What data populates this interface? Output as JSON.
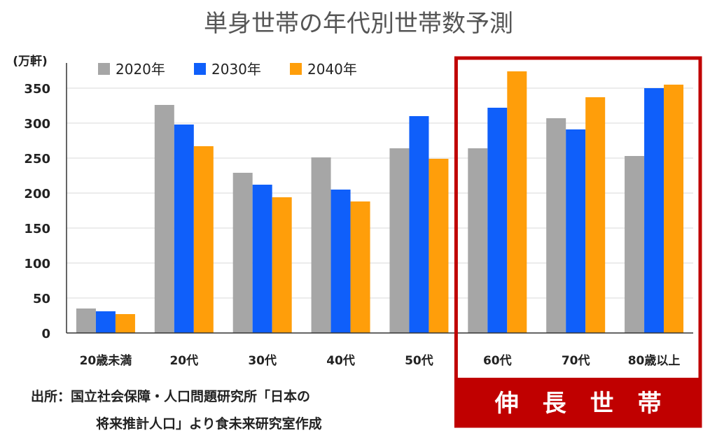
{
  "chart_data": {
    "type": "bar",
    "title": "単身世帯の年代別世帯数予測",
    "ylabel": "(万軒)",
    "xlabel": "",
    "ylim": [
      0,
      380
    ],
    "yticks": [
      0,
      50,
      100,
      150,
      200,
      250,
      300,
      350
    ],
    "grid": true,
    "legend_position": "top-left",
    "categories": [
      "20歳未満",
      "20代",
      "30代",
      "40代",
      "50代",
      "60代",
      "70代",
      "80歳以上"
    ],
    "series": [
      {
        "name": "2020年",
        "color": "#a6a6a6",
        "values": [
          35,
          326,
          229,
          251,
          264,
          264,
          307,
          253
        ]
      },
      {
        "name": "2030年",
        "color": "#0f5ffa",
        "values": [
          31,
          298,
          212,
          205,
          310,
          322,
          291,
          350
        ]
      },
      {
        "name": "2040年",
        "color": "#ff9e0a",
        "values": [
          27,
          267,
          194,
          188,
          249,
          374,
          337,
          355
        ]
      }
    ],
    "highlight": {
      "label": "伸　長　世　帯",
      "categories": [
        "60代",
        "70代",
        "80歳以上"
      ],
      "color": "#c00000"
    }
  },
  "source": {
    "line1": "出所：国立社会保障・人口問題研究所「日本の",
    "line2": "将来推計人口」より食未来研究室作成"
  }
}
